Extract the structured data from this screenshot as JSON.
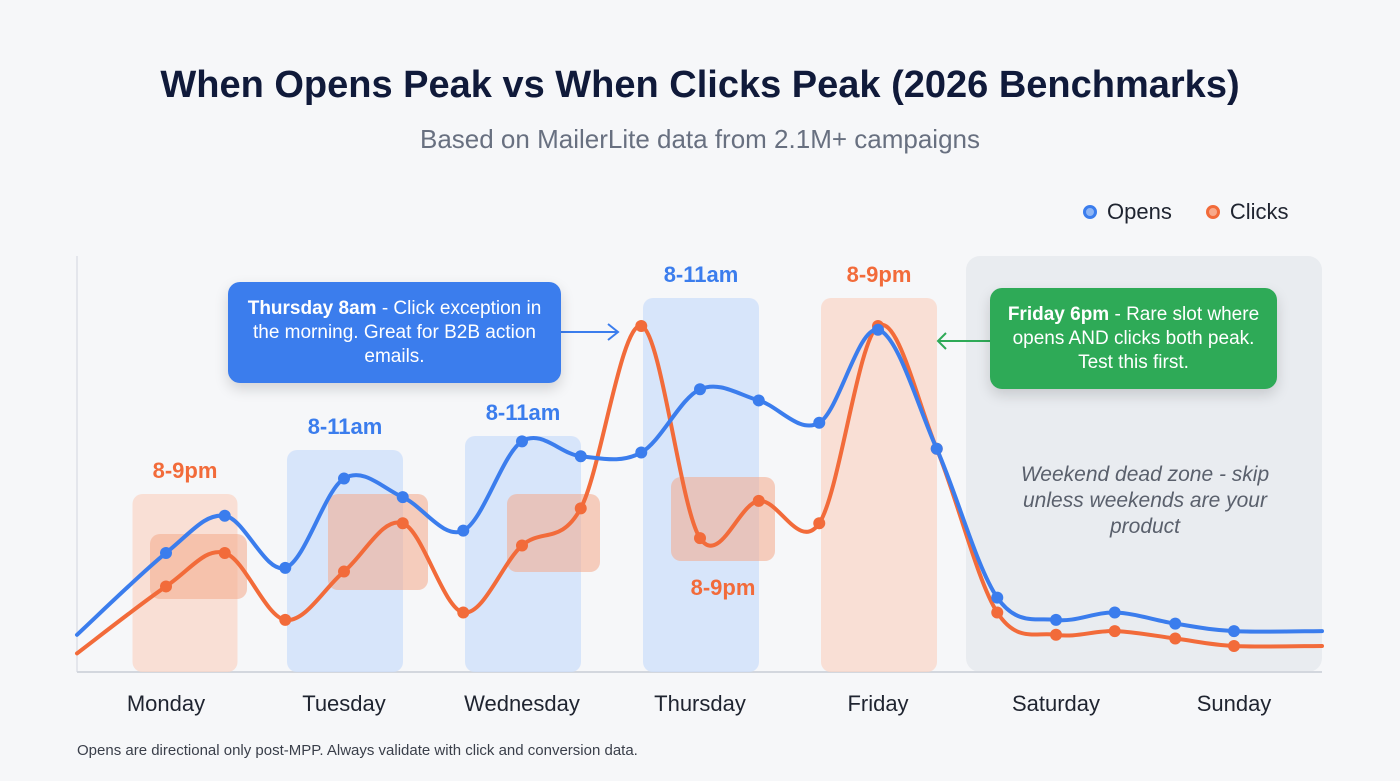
{
  "title": "When Opens Peak vs When Clicks Peak (2026 Benchmarks)",
  "subtitle": "Based on MailerLite data from 2.1M+ campaigns",
  "footnote": "Opens are directional only post-MPP. Always validate with click and conversion data.",
  "colors": {
    "opens": "#3b7ded",
    "clicks": "#f26b3a",
    "callout_blue": "#3b7ded",
    "callout_green": "#2eaa57",
    "weekend": "#e6e9ee"
  },
  "chart_data": {
    "type": "line",
    "title": "When Opens Peak vs When Clicks Peak (2026 Benchmarks)",
    "categories": [
      "Monday",
      "Tuesday",
      "Wednesday",
      "Thursday",
      "Friday",
      "Saturday",
      "Sunday"
    ],
    "x": [
      -0.5,
      0,
      0.33,
      0.67,
      1,
      1.33,
      1.67,
      2,
      2.33,
      2.67,
      3,
      3.33,
      3.67,
      4,
      4.33,
      4.67,
      5,
      5.33,
      5.67,
      6,
      6.5
    ],
    "legend": "top-right",
    "grid": false,
    "y_ticks_shown": false,
    "series": [
      {
        "name": "Opens",
        "color": "#3b7ded",
        "values": [
          10,
          32,
          42,
          28,
          52,
          47,
          38,
          62,
          58,
          59,
          76,
          73,
          67,
          92,
          60,
          20,
          14,
          16,
          13,
          11,
          11
        ]
      },
      {
        "name": "Clicks",
        "color": "#f26b3a",
        "values": [
          5,
          23,
          32,
          14,
          27,
          40,
          16,
          34,
          44,
          93,
          36,
          46,
          40,
          93,
          60,
          16,
          10,
          11,
          9,
          7,
          7
        ]
      }
    ],
    "highlights": [
      {
        "day": 0,
        "metric": "clicks",
        "label": "8-9pm"
      },
      {
        "day": 1,
        "metric": "opens",
        "label": "8-11am"
      },
      {
        "day": 2,
        "metric": "opens",
        "label": "8-11am"
      },
      {
        "day": 3,
        "metric": "opens",
        "label": "8-11am"
      },
      {
        "day": 3,
        "metric": "clicks",
        "label": "8-9pm"
      },
      {
        "day": 4,
        "metric": "clicks",
        "label": "8-9pm"
      }
    ],
    "annotations": {
      "thursday": {
        "bold": "Thursday 8am",
        "text": " - Click exception in the morning. Great for B2B action emails."
      },
      "friday": {
        "bold": "Friday 6pm",
        "text": " - Rare slot where opens AND clicks both peak. Test this first."
      },
      "weekend": "Weekend dead zone - skip unless weekends are your product"
    }
  }
}
